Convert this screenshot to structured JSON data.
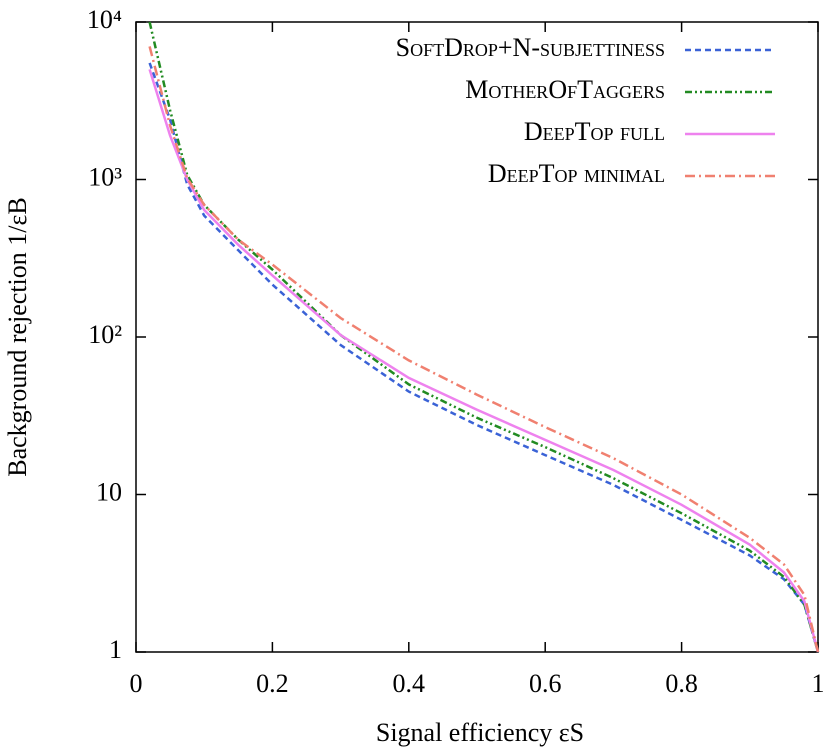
{
  "chart_data": {
    "type": "line",
    "x_label": "Signal efficiency εS",
    "y_label": "Background rejection 1/εB",
    "x": [
      0.02,
      0.05,
      0.075,
      0.1,
      0.15,
      0.2,
      0.3,
      0.4,
      0.5,
      0.6,
      0.7,
      0.8,
      0.9,
      0.95,
      0.98,
      1
    ],
    "series": [
      {
        "name": "SoftDrop+N-subjettiness",
        "color": "#3a62d6",
        "dash": "6,4",
        "values": [
          5500,
          2400,
          930,
          590,
          355,
          215,
          89,
          45,
          27.6,
          17.8,
          11.5,
          6.9,
          4.1,
          2.9,
          2.0,
          1
        ]
      },
      {
        "name": "MotherOfTaggers",
        "color": "#228b22",
        "dash": "7,3,2,3,2,3",
        "values": [
          10000,
          2750,
          1070,
          690,
          415,
          268,
          103,
          50,
          30.7,
          20,
          12.7,
          7.6,
          4.4,
          3.0,
          2.0,
          1
        ]
      },
      {
        "name": "DeepTop full",
        "color": "#ee82ee",
        "dash": "",
        "values": [
          5000,
          1900,
          1000,
          640,
          385,
          246,
          103,
          55,
          34.5,
          22.2,
          14.3,
          8.6,
          4.8,
          3.2,
          2.1,
          1
        ]
      },
      {
        "name": "DeepTop minimal",
        "color": "#f08070",
        "dash": "10,4,2,4",
        "values": [
          7000,
          2200,
          1020,
          690,
          415,
          288,
          132,
          71,
          43,
          26.8,
          17,
          10,
          5.3,
          3.6,
          2.3,
          1
        ]
      }
    ],
    "xlim": [
      0,
      1
    ],
    "xticks": [
      0,
      0.2,
      0.4,
      0.6,
      0.8,
      1
    ],
    "ylim": [
      1,
      10000
    ],
    "log_y": true,
    "yticks": [
      1,
      10,
      {
        "value": 100,
        "label": "10²"
      },
      {
        "value": 1000,
        "label": "10³"
      },
      {
        "value": 10000,
        "label": "10⁴"
      }
    ],
    "legend": "upper right"
  }
}
